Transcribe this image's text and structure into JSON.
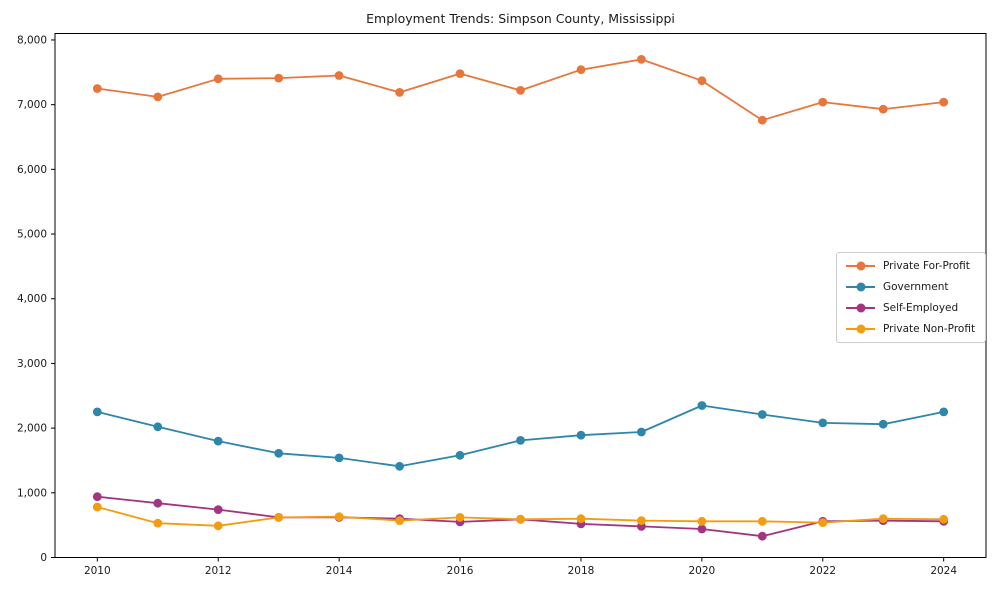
{
  "figure": {
    "background": "#ffffff",
    "axis_color": "#000000",
    "text_color": "#1a1a1a",
    "legend_border_color": "#cccccc"
  },
  "chart_data": {
    "type": "line",
    "title": "Employment Trends: Simpson County, Mississippi",
    "xlabel": "",
    "ylabel": "",
    "grid": false,
    "legend_position": "center-right",
    "xlim": [
      2009.3,
      2024.7
    ],
    "ylim": [
      0,
      8100
    ],
    "x": [
      2010,
      2011,
      2012,
      2013,
      2014,
      2015,
      2016,
      2017,
      2018,
      2019,
      2020,
      2021,
      2022,
      2023,
      2024
    ],
    "xticks": [
      2010,
      2012,
      2014,
      2016,
      2018,
      2020,
      2022,
      2024
    ],
    "xtick_labels": [
      "2010",
      "2012",
      "2014",
      "2016",
      "2018",
      "2020",
      "2022",
      "2024"
    ],
    "yticks": [
      0,
      1000,
      2000,
      3000,
      4000,
      5000,
      6000,
      7000,
      8000
    ],
    "ytick_labels": [
      "0",
      "1,000",
      "2,000",
      "3,000",
      "4,000",
      "5,000",
      "6,000",
      "7,000",
      "8,000"
    ],
    "series": [
      {
        "name": "Private For-Profit",
        "color": "#E8763C",
        "values": [
          7250,
          7120,
          7400,
          7410,
          7450,
          7190,
          7480,
          7220,
          7540,
          7700,
          7370,
          6760,
          7040,
          6930,
          7040
        ]
      },
      {
        "name": "Government",
        "color": "#2E86AB",
        "values": [
          2250,
          2020,
          1800,
          1610,
          1540,
          1410,
          1580,
          1810,
          1890,
          1940,
          2350,
          2210,
          2080,
          2060,
          2250
        ]
      },
      {
        "name": "Self-Employed",
        "color": "#A23582",
        "values": [
          940,
          840,
          740,
          620,
          620,
          600,
          550,
          590,
          520,
          480,
          440,
          330,
          560,
          570,
          560
        ]
      },
      {
        "name": "Private Non-Profit",
        "color": "#F39C12",
        "values": [
          780,
          530,
          490,
          620,
          630,
          570,
          620,
          590,
          600,
          570,
          560,
          560,
          540,
          600,
          590
        ]
      }
    ]
  }
}
